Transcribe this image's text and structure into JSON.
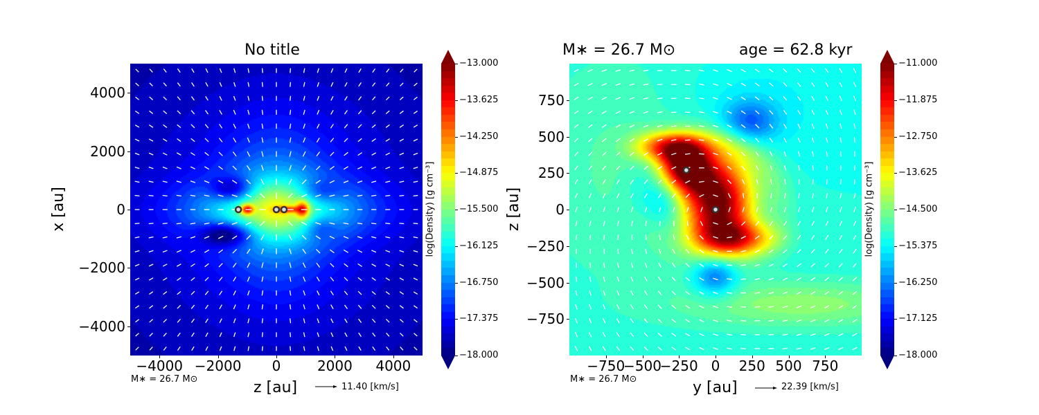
{
  "chart_data": [
    {
      "type": "heatmap",
      "title": "No title",
      "xlabel": "z [au]",
      "ylabel": "x [au]",
      "xlim": [
        -5000,
        5000
      ],
      "ylim": [
        -5000,
        5000
      ],
      "xticks": [
        "−4000",
        "−2000",
        "0",
        "2000",
        "4000"
      ],
      "xtick_values": [
        -4000,
        -2000,
        0,
        2000,
        4000
      ],
      "yticks": [
        "4000",
        "2000",
        "0",
        "−2000",
        "−4000"
      ],
      "ytick_values": [
        4000,
        2000,
        0,
        -2000,
        -4000
      ],
      "colorbar": {
        "label": "log(Density) [g cm⁻³]",
        "range": [
          -18.0,
          -13.0
        ],
        "colormap": "jet",
        "ticks": [
          "−13.000",
          "−13.625",
          "−14.250",
          "−14.875",
          "−15.500",
          "−16.125",
          "−16.750",
          "−17.375",
          "−18.000"
        ]
      },
      "stars": [
        {
          "x": -1300,
          "y": 0
        },
        {
          "x": 0,
          "y": 0
        },
        {
          "x": 260,
          "y": 0
        }
      ],
      "mass_note": "M∗ = 26.7 M⊙",
      "velocity_scale": "11.40 [km/s]"
    },
    {
      "type": "heatmap",
      "title_left": "M∗ = 26.7 M⊙",
      "title_right": "age = 62.8 kyr",
      "xlabel": "y [au]",
      "ylabel": "z [au]",
      "xlim": [
        -1000,
        1000
      ],
      "ylim": [
        -1000,
        1000
      ],
      "xticks": [
        "−750",
        "−500",
        "−250",
        "0",
        "250",
        "500",
        "750"
      ],
      "xtick_values": [
        -750,
        -500,
        -250,
        0,
        250,
        500,
        750
      ],
      "yticks": [
        "750",
        "500",
        "250",
        "0",
        "−250",
        "−500",
        "−750"
      ],
      "ytick_values": [
        750,
        500,
        250,
        0,
        -250,
        -500,
        -750
      ],
      "colorbar": {
        "label": "log(Density) [g cm⁻³]",
        "range": [
          -18.0,
          -11.0
        ],
        "colormap": "jet",
        "ticks": [
          "−11.000",
          "−11.875",
          "−12.750",
          "−13.625",
          "−14.500",
          "−15.375",
          "−16.250",
          "−17.125",
          "−18.000"
        ]
      },
      "stars": [
        {
          "x": -200,
          "y": 270
        },
        {
          "x": 0,
          "y": 0
        }
      ],
      "mass_note": "M∗ = 26.7 M⊙",
      "velocity_scale": "22.39 [km/s]"
    }
  ]
}
